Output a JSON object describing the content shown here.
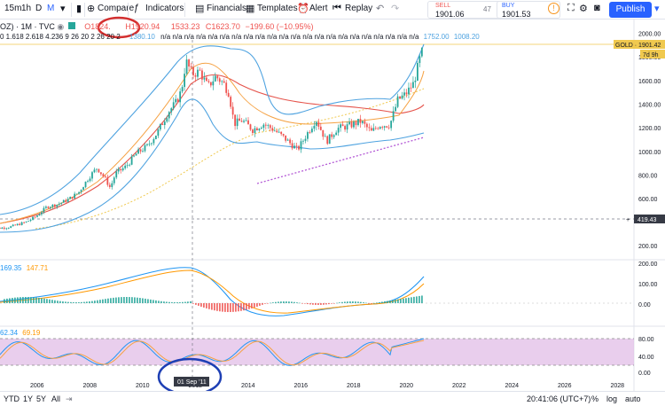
{
  "toolbar": {
    "interval": "15m",
    "hour": "1h",
    "day": "D",
    "month": "M",
    "compare": "Compare",
    "indicators": "Indicators",
    "financials": "Financials",
    "templates": "Templates",
    "alert": "Alert",
    "replay": "Replay",
    "sell_label": "SELL",
    "sell_price": "1901.06",
    "spread": "47",
    "buy_label": "BUY",
    "buy_price": "1901.53",
    "publish": "Publish"
  },
  "legend": {
    "symbol": "OZ) · 1M · TVC",
    "open": "O1824.",
    "high": "H1920.94",
    "low": "1533.23",
    "close": "C1623.70",
    "change": "−199.60 (−10.95%)",
    "fib_levels": "0 1.618 2.618 4.236 9 26 20 2 26 20 2",
    "bb_values": [
      "1380.10",
      "1752.00",
      "1008.20"
    ],
    "fib_tail": "n/a n/a n/a n/a n/a n/a n/a n/a n/a n/a n/a n/a n/a n/a n/a n/a n/a n/a n/a n/a n/a n/a",
    "macd_values": [
      "169.35",
      "147.71"
    ],
    "stoch_values": [
      "62.34",
      "69.19"
    ]
  },
  "price_labels": {
    "gold_tag": "GOLD · 1901.42",
    "countdown": "7d 9h",
    "crosshair_price": "419.43",
    "crosshair_date": "01 Sep '11"
  },
  "colors": {
    "candle_up": "#26a69a",
    "candle_down": "#ef5350",
    "bb_band": "#4fa3e0",
    "sma_red": "#e5534b",
    "ema_orange": "#f5a142",
    "sma_yellow_dotted": "#f0c94f",
    "trend_purple": "#b45ad6",
    "macd_blue": "#2196f3",
    "macd_orange": "#ff9800",
    "stoch_zone": "#e1bee7",
    "annotation_red": "#d32f2f",
    "annotation_blue": "#1e3fb4",
    "accent": "#2962ff"
  },
  "chart_data": [
    {
      "type": "line",
      "title": "",
      "xlabel": "",
      "ylabel": "",
      "x_ticks": [
        "2006",
        "2008",
        "2010",
        "2012",
        "2014",
        "2016",
        "2018",
        "2020",
        "2022",
        "2024",
        "2026",
        "2028"
      ],
      "y_ticks": [
        "2000.00",
        "1800.00",
        "1600.00",
        "1400.00",
        "1200.00",
        "1000.00",
        "800.00",
        "600.00",
        "419.43",
        "200.00"
      ],
      "ylim": [
        200,
        2080
      ],
      "grid": false,
      "series": [
        {
          "x": [
            2004.2,
            2005.0,
            2005.6,
            2006.0,
            2006.4,
            2006.8,
            2007.2,
            2007.6,
            2008.0,
            2008.3,
            2008.6,
            2008.8,
            2009.0,
            2009.4,
            2009.8,
            2010.2,
            2010.6,
            2011.0,
            2011.3,
            2011.5,
            2011.67,
            2011.9,
            2012.2,
            2012.5,
            2012.8,
            2013.1,
            2013.3,
            2013.5,
            2013.8,
            2014.2,
            2014.6,
            2015.0,
            2015.4,
            2015.9,
            2016.3,
            2016.6,
            2017.0,
            2017.4,
            2017.8,
            2018.3,
            2018.7,
            2019.0,
            2019.4,
            2019.7,
            2020.0,
            2020.3,
            2020.6
          ],
          "values": [
            410,
            430,
            470,
            520,
            600,
            620,
            660,
            720,
            850,
            930,
            840,
            760,
            880,
            940,
            1050,
            1110,
            1230,
            1400,
            1480,
            1580,
            1830,
            1720,
            1740,
            1610,
            1700,
            1640,
            1560,
            1300,
            1330,
            1250,
            1300,
            1250,
            1180,
            1080,
            1230,
            1340,
            1150,
            1260,
            1280,
            1320,
            1230,
            1290,
            1290,
            1500,
            1550,
            1640,
            1901
          ]
        }
      ]
    },
    {
      "type": "bar",
      "title": "",
      "y_ticks": [
        "200.00",
        "100.00",
        "0.00"
      ],
      "ylim": [
        -60,
        230
      ]
    },
    {
      "type": "line",
      "title": "",
      "y_ticks": [
        "80.00",
        "40.00",
        "0.00"
      ],
      "ylim": [
        -5,
        105
      ]
    }
  ],
  "bottom": {
    "ranges": [
      "YTD",
      "1Y",
      "5Y",
      "All"
    ],
    "time": "20:41:06 (UTC+7)",
    "percent": "%",
    "log": "log",
    "auto": "auto"
  }
}
